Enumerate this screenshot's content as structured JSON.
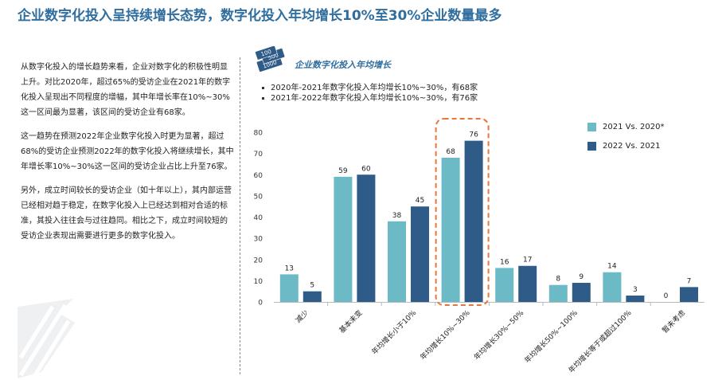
{
  "page": {
    "title": "企业数字化投入呈持续增长态势，数字化投入年均增长10%至30%企业数量最多",
    "paragraphs": [
      "从数字化投入的增长趋势来看，企业对数字化的积极性明显上升。对比2020年，超过65%的受访企业在2021年的数字化投入呈现出不同程度的增幅，其中年增长率在10%~30%这一区间最为显著，该区间的受访企业有68家。",
      "这一趋势在预测2022年企业数字化投入时更为显著，超过68%的受访企业预测2022年的数字化投入将继续增长，其中年增长率10%~30%这一区间的受访企业占比上升至76家。",
      "另外，成立时间较长的受访企业（如十年以上），其内部运营已经相对趋于稳定，在数字化投入上已经达到相对合适的标准，其投入往往会与过往趋同。相比之下，成立时间较短的受访企业表现出需要进行更多的数字化投入。"
    ]
  },
  "chart_panel": {
    "icon_notes": [
      "100",
      "500",
      "1000"
    ],
    "bullets": [
      "2020年-2021年数字化投入年均增长10%~30%，有68家",
      "2021年-2022年数字化投入年均增长10%~30%，有76家"
    ]
  },
  "chart_data": {
    "type": "bar",
    "title": "企业数字化投入年均增长",
    "categories": [
      "减少",
      "基本未变",
      "年均增长小于10%",
      "年均增长10%~30%",
      "年均增长30%~50%",
      "年均增长50%~100%",
      "年均增长等于或超过100%",
      "暂未考虑"
    ],
    "series": [
      {
        "name": "2021 Vs. 2020*",
        "color": "#6cbac6",
        "values": [
          13,
          59,
          38,
          68,
          16,
          8,
          14,
          0
        ]
      },
      {
        "name": "2022 Vs. 2021",
        "color": "#2e5b87",
        "values": [
          5,
          60,
          45,
          76,
          17,
          9,
          3,
          7
        ]
      }
    ],
    "ylim": [
      0,
      80
    ],
    "yticks": [
      0,
      10,
      20,
      30,
      40,
      50,
      60,
      70,
      80
    ],
    "grid": false,
    "legend_position": "top-right",
    "highlight_category": "年均增长10%~30%",
    "highlight_color": "#e8763a"
  }
}
